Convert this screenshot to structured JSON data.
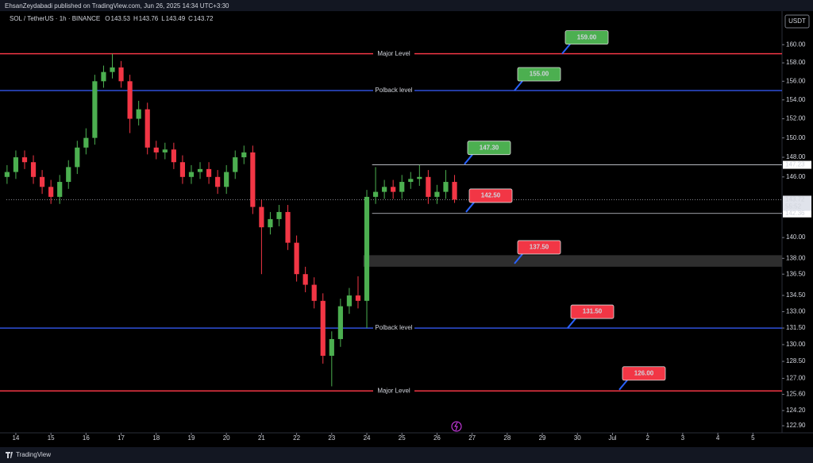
{
  "header": {
    "published": "EhsanZeydabadi published on TradingView.com, Jun 26, 2025 14:34 UTC+3:30",
    "brand": "TradingView"
  },
  "chart_data": {
    "type": "candlestick",
    "title": "SOL / TetherUS · 1h · BINANCE",
    "ohlc_legend": [
      {
        "label": "O",
        "value": "143.53"
      },
      {
        "label": "H",
        "value": "143.76"
      },
      {
        "label": "L",
        "value": "143.49"
      },
      {
        "label": "C",
        "value": "143.72"
      }
    ],
    "unit": "USDT",
    "log_scale": true,
    "up_color": "#4caf50",
    "down_color": "#f23645",
    "x": [
      -0.25,
      0,
      0.25,
      0.5,
      0.75,
      1,
      1.25,
      1.5,
      1.75,
      2,
      2.25,
      2.5,
      2.75,
      3,
      3.25,
      3.5,
      3.75,
      4,
      4.25,
      4.5,
      4.75,
      5,
      5.25,
      5.5,
      5.75,
      6,
      6.25,
      6.5,
      6.75,
      7,
      7.25,
      7.5,
      7.75,
      8,
      8.25,
      8.5,
      8.75,
      9,
      9.25,
      9.5,
      9.75,
      10,
      10.25,
      10.5,
      10.75,
      11,
      11.25,
      11.5,
      11.75,
      12,
      12.25,
      12.5
    ],
    "open": [
      146,
      146.5,
      148,
      147.5,
      146,
      145,
      144,
      145.5,
      147,
      149,
      150,
      156,
      157,
      157.5,
      156,
      152,
      153,
      149,
      148.5,
      148.8,
      147.5,
      146,
      146.5,
      146.8,
      146,
      145,
      146.5,
      148,
      148.5,
      143,
      141,
      141.8,
      142.5,
      139.5,
      136.5,
      135.5,
      134,
      129,
      130.5,
      133.5,
      134.5,
      134,
      144,
      144.5,
      145,
      144.5,
      145.5,
      145.8,
      146,
      144,
      144.5,
      145.5
    ],
    "high": [
      147.2,
      148.7,
      148.7,
      148.2,
      146.7,
      145.7,
      146.2,
      147.7,
      149.7,
      151,
      156.7,
      157.7,
      159,
      158.2,
      156.7,
      153.9,
      153.7,
      149.7,
      149.5,
      149.5,
      148.2,
      147.2,
      147.5,
      147.5,
      146.7,
      147.2,
      148.7,
      149.2,
      149.2,
      143.7,
      142.5,
      143.2,
      143.2,
      140.2,
      137.2,
      136.2,
      134.7,
      131.2,
      134.2,
      135.2,
      136.3,
      144.7,
      147,
      145.7,
      145.7,
      146.2,
      146.5,
      147.2,
      146.7,
      145.2,
      146.7,
      146.2
    ],
    "low": [
      145.3,
      145.8,
      146.8,
      145.3,
      144.3,
      143.3,
      143.3,
      144.8,
      146.3,
      148.3,
      149.3,
      155.3,
      156.3,
      155.3,
      150.5,
      151.3,
      148.3,
      147.8,
      147.8,
      146.8,
      145.3,
      145.3,
      145.8,
      145.3,
      144.3,
      144.3,
      145.8,
      147.3,
      142.3,
      136.5,
      140.3,
      141.1,
      138.8,
      135.8,
      134.8,
      133.3,
      128.3,
      126.3,
      129.8,
      132.8,
      133.3,
      131.5,
      143.3,
      143.8,
      143.8,
      143.8,
      144.8,
      145.1,
      143.3,
      143.3,
      143.8,
      143.4
    ],
    "close": [
      146.5,
      148,
      147.5,
      146,
      145,
      144,
      145.5,
      147,
      149,
      150,
      156,
      157,
      157.5,
      156,
      152,
      153,
      149,
      148.5,
      148.8,
      147.5,
      146,
      146.5,
      146.8,
      146,
      145,
      146.5,
      148,
      148.5,
      143,
      141,
      141.8,
      142.5,
      139.5,
      136.5,
      135.5,
      134,
      129,
      130.5,
      133.5,
      134.5,
      134,
      144,
      144.5,
      145,
      144.5,
      145.5,
      145.8,
      146,
      144,
      144.5,
      145.5,
      143.72
    ],
    "xlim": [
      -0.27,
      21.83
    ],
    "ylim": [
      122.3,
      163.4
    ],
    "xticks": [
      {
        "value": 0,
        "label": "14"
      },
      {
        "value": 1,
        "label": "15"
      },
      {
        "value": 2,
        "label": "16"
      },
      {
        "value": 3,
        "label": "17"
      },
      {
        "value": 4,
        "label": "18"
      },
      {
        "value": 5,
        "label": "19"
      },
      {
        "value": 6,
        "label": "20"
      },
      {
        "value": 7,
        "label": "21"
      },
      {
        "value": 8,
        "label": "22"
      },
      {
        "value": 9,
        "label": "23"
      },
      {
        "value": 10,
        "label": "24"
      },
      {
        "value": 11,
        "label": "25"
      },
      {
        "value": 12,
        "label": "26"
      },
      {
        "value": 13,
        "label": "27"
      },
      {
        "value": 14,
        "label": "28"
      },
      {
        "value": 15,
        "label": "29"
      },
      {
        "value": 16,
        "label": "30"
      },
      {
        "value": 17,
        "label": "Jul"
      },
      {
        "value": 18,
        "label": "2"
      },
      {
        "value": 19,
        "label": "3"
      },
      {
        "value": 20,
        "label": "4"
      },
      {
        "value": 21,
        "label": "5"
      }
    ],
    "yticks": [
      {
        "value": 160,
        "label": "160.00"
      },
      {
        "value": 158,
        "label": "158.00"
      },
      {
        "value": 156,
        "label": "156.00"
      },
      {
        "value": 154,
        "label": "154.00"
      },
      {
        "value": 152,
        "label": "152.00"
      },
      {
        "value": 150,
        "label": "150.00"
      },
      {
        "value": 148,
        "label": "148.00"
      },
      {
        "value": 146,
        "label": "146.00"
      },
      {
        "value": 140,
        "label": "140.00"
      },
      {
        "value": 138,
        "label": "138.00"
      },
      {
        "value": 136.5,
        "label": "136.50"
      },
      {
        "value": 134.5,
        "label": "134.50"
      },
      {
        "value": 133,
        "label": "133.00"
      },
      {
        "value": 131.5,
        "label": "131.50"
      },
      {
        "value": 130,
        "label": "130.00"
      },
      {
        "value": 128.5,
        "label": "128.50"
      },
      {
        "value": 127,
        "label": "127.00"
      },
      {
        "value": 125.6,
        "label": "125.60"
      },
      {
        "value": 124.2,
        "label": "124.20"
      },
      {
        "value": 122.9,
        "label": "122.90"
      }
    ],
    "levels": [
      {
        "value": 159,
        "label": "Major Level",
        "color": "#f23645"
      },
      {
        "value": 155,
        "label": "Polback level",
        "color": "#2f4fd8"
      },
      {
        "value": 131.5,
        "label": "Polback level",
        "color": "#2f4fd8"
      },
      {
        "value": 125.9,
        "label": "Major Level",
        "color": "#f23645"
      }
    ],
    "range_lines": [
      {
        "value": 147.23,
        "label": "147.23",
        "x_start": 10.15
      },
      {
        "value": 142.36,
        "label": "142.36",
        "x_start": 10.15
      }
    ],
    "current_price": {
      "value": 143.72,
      "label": "143.72",
      "countdown": "55:52"
    },
    "zone": {
      "low": 137.2,
      "high": 138.3,
      "x_start": 9.9,
      "color": "#3a3a3a"
    },
    "callouts": [
      {
        "value": 159,
        "label": "159.00",
        "color": "#4caf50"
      },
      {
        "value": 155,
        "label": "155.00",
        "color": "#4caf50"
      },
      {
        "value": 147.3,
        "label": "147.30",
        "color": "#4caf50"
      },
      {
        "value": 142.5,
        "label": "142.50",
        "color": "#f23645"
      },
      {
        "value": 137.5,
        "label": "137.50",
        "color": "#f23645"
      },
      {
        "value": 131.5,
        "label": "131.50",
        "color": "#f23645"
      },
      {
        "value": 126,
        "label": "126.00",
        "color": "#f23645"
      }
    ]
  }
}
